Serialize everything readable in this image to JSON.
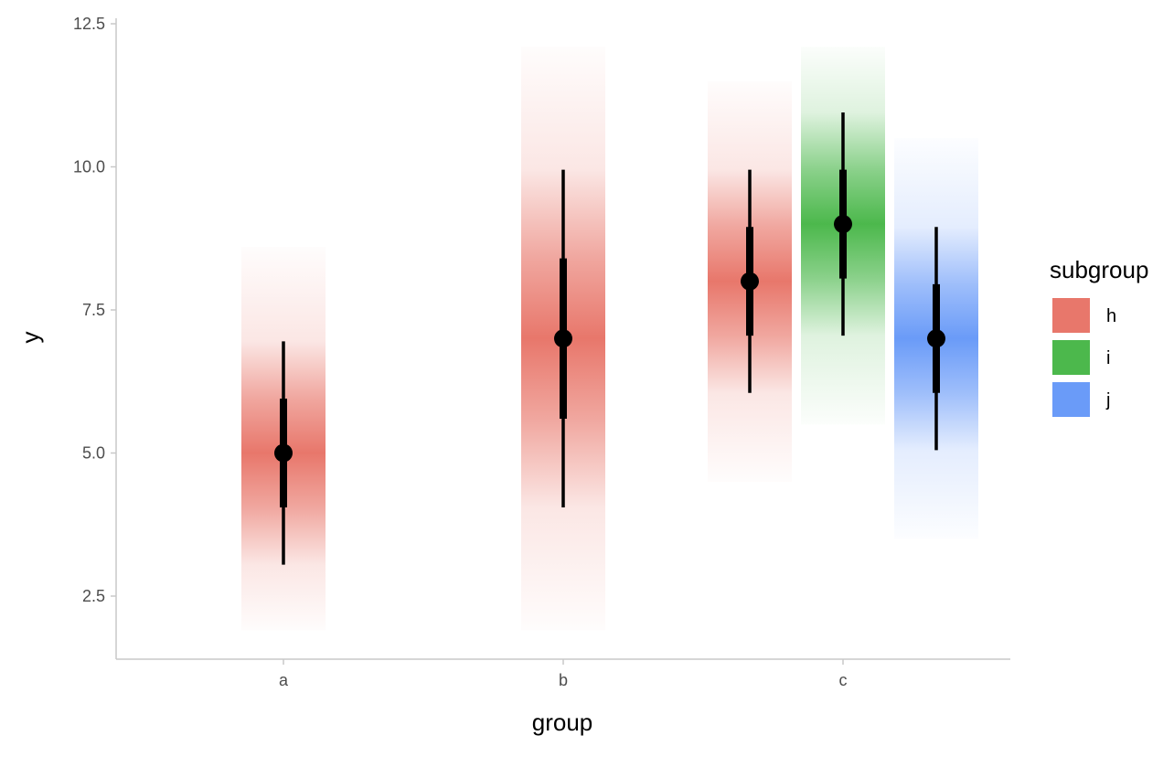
{
  "chart_data": {
    "type": "gradient-interval",
    "title": "",
    "xlabel": "group",
    "ylabel": "y",
    "categories": [
      "a",
      "b",
      "c"
    ],
    "ylim": [
      1.6,
      12.6
    ],
    "yticks": [
      2.5,
      5.0,
      7.5,
      10.0,
      12.5
    ],
    "ytick_labels": [
      "2.5",
      "5.0",
      "7.5",
      "10.0",
      "12.5"
    ],
    "legend": {
      "title": "subgroup",
      "position": "right",
      "items": [
        {
          "label": "h",
          "color": "#E8776B"
        },
        {
          "label": "i",
          "color": "#4CB84C"
        },
        {
          "label": "j",
          "color": "#6A9BF8"
        }
      ]
    },
    "grid": false,
    "series": [
      {
        "group": "a",
        "subgroup": "h",
        "point": 5.0,
        "inner": [
          4.05,
          5.95
        ],
        "outer": [
          3.05,
          6.95
        ],
        "band": [
          1.9,
          8.6
        ],
        "color": "#E8776B"
      },
      {
        "group": "b",
        "subgroup": "h",
        "point": 7.0,
        "inner": [
          5.6,
          8.4
        ],
        "outer": [
          4.05,
          9.95
        ],
        "band": [
          1.9,
          12.1
        ],
        "color": "#E8776B"
      },
      {
        "group": "c",
        "subgroup": "h",
        "point": 8.0,
        "inner": [
          7.05,
          8.95
        ],
        "outer": [
          6.05,
          9.95
        ],
        "band": [
          4.5,
          11.5
        ],
        "color": "#E8776B"
      },
      {
        "group": "c",
        "subgroup": "i",
        "point": 9.0,
        "inner": [
          8.05,
          9.95
        ],
        "outer": [
          7.05,
          10.95
        ],
        "band": [
          5.5,
          12.1
        ],
        "color": "#4CB84C"
      },
      {
        "group": "c",
        "subgroup": "j",
        "point": 7.0,
        "inner": [
          6.05,
          7.95
        ],
        "outer": [
          5.05,
          8.95
        ],
        "band": [
          3.5,
          10.5
        ],
        "color": "#6A9BF8"
      }
    ]
  }
}
